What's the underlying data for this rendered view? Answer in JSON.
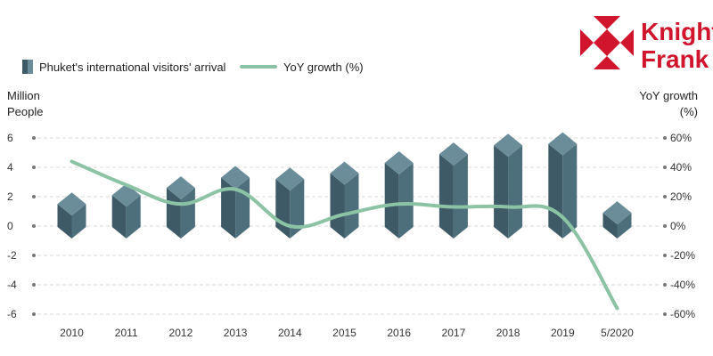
{
  "chart_data": {
    "type": "bar+line",
    "categories": [
      "2010",
      "2011",
      "2012",
      "2013",
      "2014",
      "2015",
      "2016",
      "2017",
      "2018",
      "2019",
      "5/2020"
    ],
    "series": [
      {
        "name": "Phuket's international visitors' arrival",
        "type": "bar",
        "axis": "left",
        "values": [
          1.5,
          2.1,
          2.6,
          3.3,
          3.2,
          3.6,
          4.3,
          4.9,
          5.5,
          5.6,
          0.9
        ],
        "color": "#4d6f7b"
      },
      {
        "name": "YoY growth (%)",
        "type": "line",
        "axis": "right",
        "values": [
          44,
          28,
          15,
          25,
          0,
          8,
          15,
          13,
          13,
          6,
          -56
        ],
        "color": "#8cc3a5"
      }
    ],
    "y_left": {
      "label_line1": "Million",
      "label_line2": "People",
      "ylim": [
        -6,
        6
      ],
      "ticks": [
        6,
        4,
        2,
        0,
        -2,
        -4,
        -6
      ],
      "tick_labels": [
        "6",
        "4",
        "2",
        "0",
        "-2",
        "-4",
        "-6"
      ]
    },
    "y_right": {
      "label_line1": "YoY growth",
      "label_line2": "(%)",
      "ylim": [
        -60,
        60
      ],
      "tick_labels": [
        "60%",
        "40%",
        "20%",
        "0%",
        "-20%",
        "-40%",
        "-60%"
      ]
    },
    "grid": true,
    "legend_position": "top-left"
  },
  "logo": {
    "line1": "Knight",
    "line2": "Frank",
    "color": "#d0152d"
  },
  "colors": {
    "grid": "#d8d8d8",
    "bar_dark": "#3e5a66",
    "bar_light": "#6a8d99",
    "line": "#8cc3a5"
  }
}
